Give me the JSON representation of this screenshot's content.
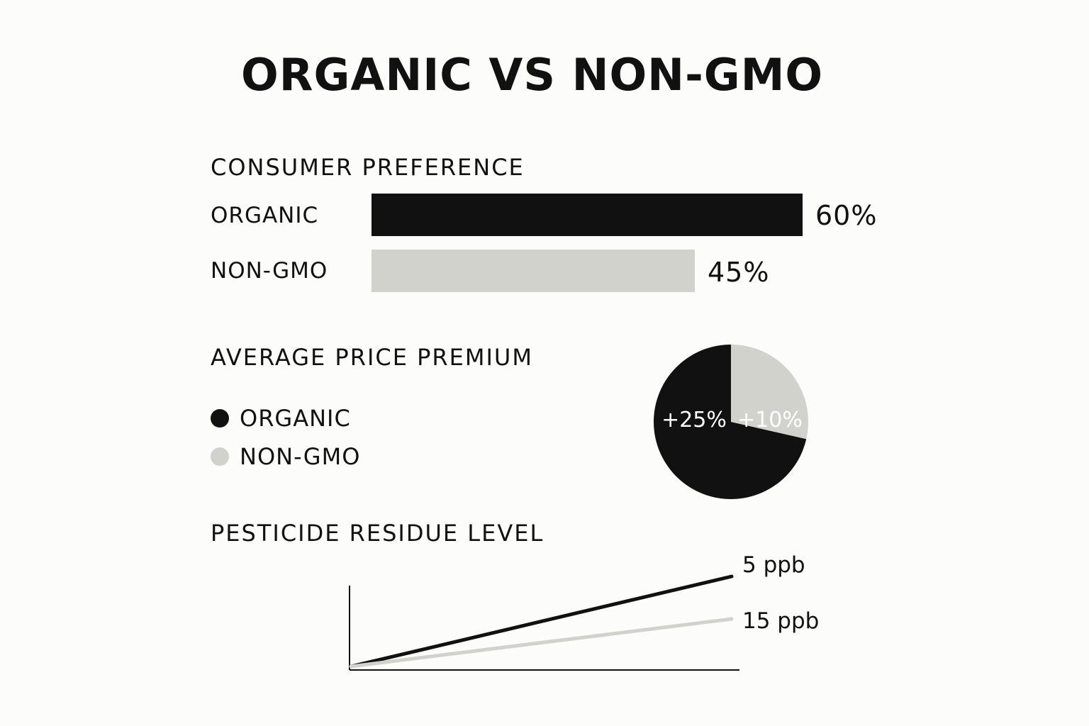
{
  "title": "ORGANIC VS NON-GMO",
  "colors": {
    "organic": "#111111",
    "non_gmo": "#d2d2cd",
    "text": "#111111",
    "background": "#fcfcfa"
  },
  "chart_data": [
    {
      "type": "bar",
      "orientation": "horizontal",
      "title": "CONSUMER PREFERENCE",
      "categories": [
        "ORGANIC",
        "NON-GMO"
      ],
      "values": [
        60,
        45
      ],
      "value_labels": [
        "60%",
        "45%"
      ],
      "unit": "%"
    },
    {
      "type": "pie",
      "title": "AVERAGE PRICE PREMIUM",
      "legend": [
        "ORGANIC",
        "NON-GMO"
      ],
      "legend_placement": "left",
      "values": [
        25,
        10
      ],
      "value_labels": [
        "+25%",
        "+10%"
      ],
      "unit": "%"
    },
    {
      "type": "line",
      "title": "PESTICIDE RESIDUE LEVEL",
      "series": [
        {
          "values": [
            0,
            5
          ],
          "end_label": "5 ppb"
        },
        {
          "values": [
            0,
            15
          ],
          "end_label": "15 ppb"
        }
      ],
      "unit": "ppb",
      "grid": false
    }
  ]
}
